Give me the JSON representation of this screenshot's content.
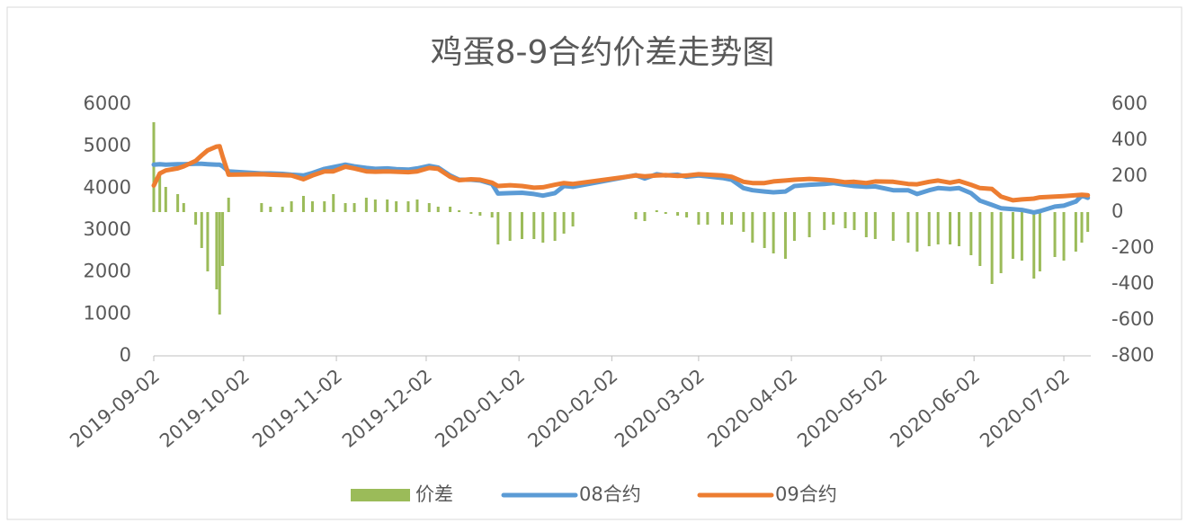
{
  "chart_data": {
    "type": "bar-line",
    "title": "鸡蛋8-9合约价差走势图",
    "x": [
      "2019-09-02",
      "2019-09-04",
      "2019-09-06",
      "2019-09-10",
      "2019-09-12",
      "2019-09-16",
      "2019-09-18",
      "2019-09-20",
      "2019-09-23",
      "2019-09-24",
      "2019-09-25",
      "2019-09-27",
      "2019-10-08",
      "2019-10-11",
      "2019-10-15",
      "2019-10-18",
      "2019-10-22",
      "2019-10-25",
      "2019-10-29",
      "2019-11-01",
      "2019-11-05",
      "2019-11-08",
      "2019-11-12",
      "2019-11-15",
      "2019-11-19",
      "2019-11-22",
      "2019-11-26",
      "2019-11-29",
      "2019-12-03",
      "2019-12-06",
      "2019-12-10",
      "2019-12-13",
      "2019-12-17",
      "2019-12-20",
      "2019-12-24",
      "2019-12-26",
      "2019-12-30",
      "2020-01-03",
      "2020-01-07",
      "2020-01-10",
      "2020-01-14",
      "2020-01-17",
      "2020-01-20",
      "2020-02-10",
      "2020-02-13",
      "2020-02-17",
      "2020-02-20",
      "2020-02-24",
      "2020-02-27",
      "2020-03-02",
      "2020-03-05",
      "2020-03-10",
      "2020-03-13",
      "2020-03-17",
      "2020-03-20",
      "2020-03-24",
      "2020-03-27",
      "2020-03-31",
      "2020-04-03",
      "2020-04-08",
      "2020-04-13",
      "2020-04-16",
      "2020-04-20",
      "2020-04-23",
      "2020-04-27",
      "2020-04-30",
      "2020-05-06",
      "2020-05-11",
      "2020-05-14",
      "2020-05-18",
      "2020-05-21",
      "2020-05-25",
      "2020-05-28",
      "2020-06-01",
      "2020-06-04",
      "2020-06-08",
      "2020-06-11",
      "2020-06-15",
      "2020-06-18",
      "2020-06-22",
      "2020-06-24",
      "2020-06-29",
      "2020-07-02",
      "2020-07-06",
      "2020-07-08",
      "2020-07-10"
    ],
    "series": [
      {
        "name": "价差",
        "color": "#9bbb59",
        "axis": "y2",
        "kind": "bar",
        "values": [
          500,
          220,
          140,
          100,
          50,
          -70,
          -200,
          -330,
          -430,
          -570,
          -300,
          80,
          50,
          30,
          30,
          60,
          90,
          60,
          60,
          100,
          50,
          50,
          80,
          70,
          70,
          60,
          60,
          70,
          50,
          30,
          30,
          10,
          -10,
          -20,
          -30,
          -180,
          -160,
          -150,
          -150,
          -170,
          -160,
          -120,
          -80,
          -40,
          -50,
          10,
          -10,
          -20,
          -30,
          -70,
          -70,
          -70,
          -70,
          -110,
          -170,
          -200,
          -230,
          -260,
          -160,
          -140,
          -100,
          -70,
          -90,
          -100,
          -140,
          -150,
          -160,
          -170,
          -220,
          -190,
          -180,
          -180,
          -190,
          -240,
          -300,
          -400,
          -340,
          -260,
          -270,
          -370,
          -330,
          -250,
          -270,
          -220,
          -170,
          -110
        ]
      },
      {
        "name": "08合约",
        "color": "#5b9bd5",
        "kind": "line",
        "values": [
          4560,
          4570,
          4560,
          4570,
          4570,
          4580,
          4580,
          4570,
          4560,
          4560,
          4520,
          4400,
          4350,
          4350,
          4340,
          4320,
          4300,
          4360,
          4460,
          4500,
          4560,
          4520,
          4480,
          4460,
          4470,
          4450,
          4440,
          4470,
          4530,
          4490,
          4300,
          4200,
          4200,
          4180,
          4100,
          3870,
          3880,
          3890,
          3860,
          3820,
          3880,
          4050,
          4030,
          4310,
          4230,
          4330,
          4300,
          4320,
          4270,
          4300,
          4280,
          4240,
          4200,
          4000,
          3950,
          3920,
          3900,
          3920,
          4050,
          4080,
          4100,
          4120,
          4080,
          4050,
          4030,
          4040,
          3950,
          3950,
          3860,
          3950,
          4000,
          3980,
          4000,
          3880,
          3700,
          3600,
          3520,
          3500,
          3480,
          3420,
          3450,
          3560,
          3580,
          3680,
          3820,
          3770
        ]
      },
      {
        "name": "09合约",
        "color": "#ed7d31",
        "kind": "line",
        "values": [
          4060,
          4350,
          4420,
          4470,
          4520,
          4650,
          4780,
          4900,
          4990,
          5000,
          4750,
          4320,
          4330,
          4320,
          4310,
          4300,
          4210,
          4300,
          4400,
          4400,
          4510,
          4470,
          4400,
          4390,
          4400,
          4390,
          4380,
          4400,
          4480,
          4460,
          4270,
          4190,
          4210,
          4200,
          4130,
          4050,
          4070,
          4050,
          4010,
          4020,
          4080,
          4120,
          4100,
          4300,
          4280,
          4300,
          4310,
          4290,
          4300,
          4330,
          4320,
          4300,
          4270,
          4150,
          4120,
          4120,
          4160,
          4180,
          4200,
          4220,
          4200,
          4180,
          4140,
          4150,
          4120,
          4160,
          4150,
          4100,
          4090,
          4150,
          4180,
          4130,
          4170,
          4080,
          4000,
          3980,
          3800,
          3710,
          3730,
          3750,
          3780,
          3800,
          3810,
          3830,
          3840,
          3830
        ]
      }
    ],
    "xlim": [
      "2019-09-02",
      "2020-07-11"
    ],
    "xticks": [
      "2019-09-02",
      "2019-10-02",
      "2019-11-02",
      "2019-12-02",
      "2020-01-02",
      "2020-02-02",
      "2020-03-02",
      "2020-04-02",
      "2020-05-02",
      "2020-06-02",
      "2020-07-02"
    ],
    "ylim": [
      0,
      6000
    ],
    "yticks": [
      0,
      1000,
      2000,
      3000,
      4000,
      5000,
      6000
    ],
    "y2lim": [
      -800,
      600
    ],
    "y2ticks": [
      -800,
      -600,
      -400,
      -200,
      0,
      200,
      400,
      600
    ]
  }
}
